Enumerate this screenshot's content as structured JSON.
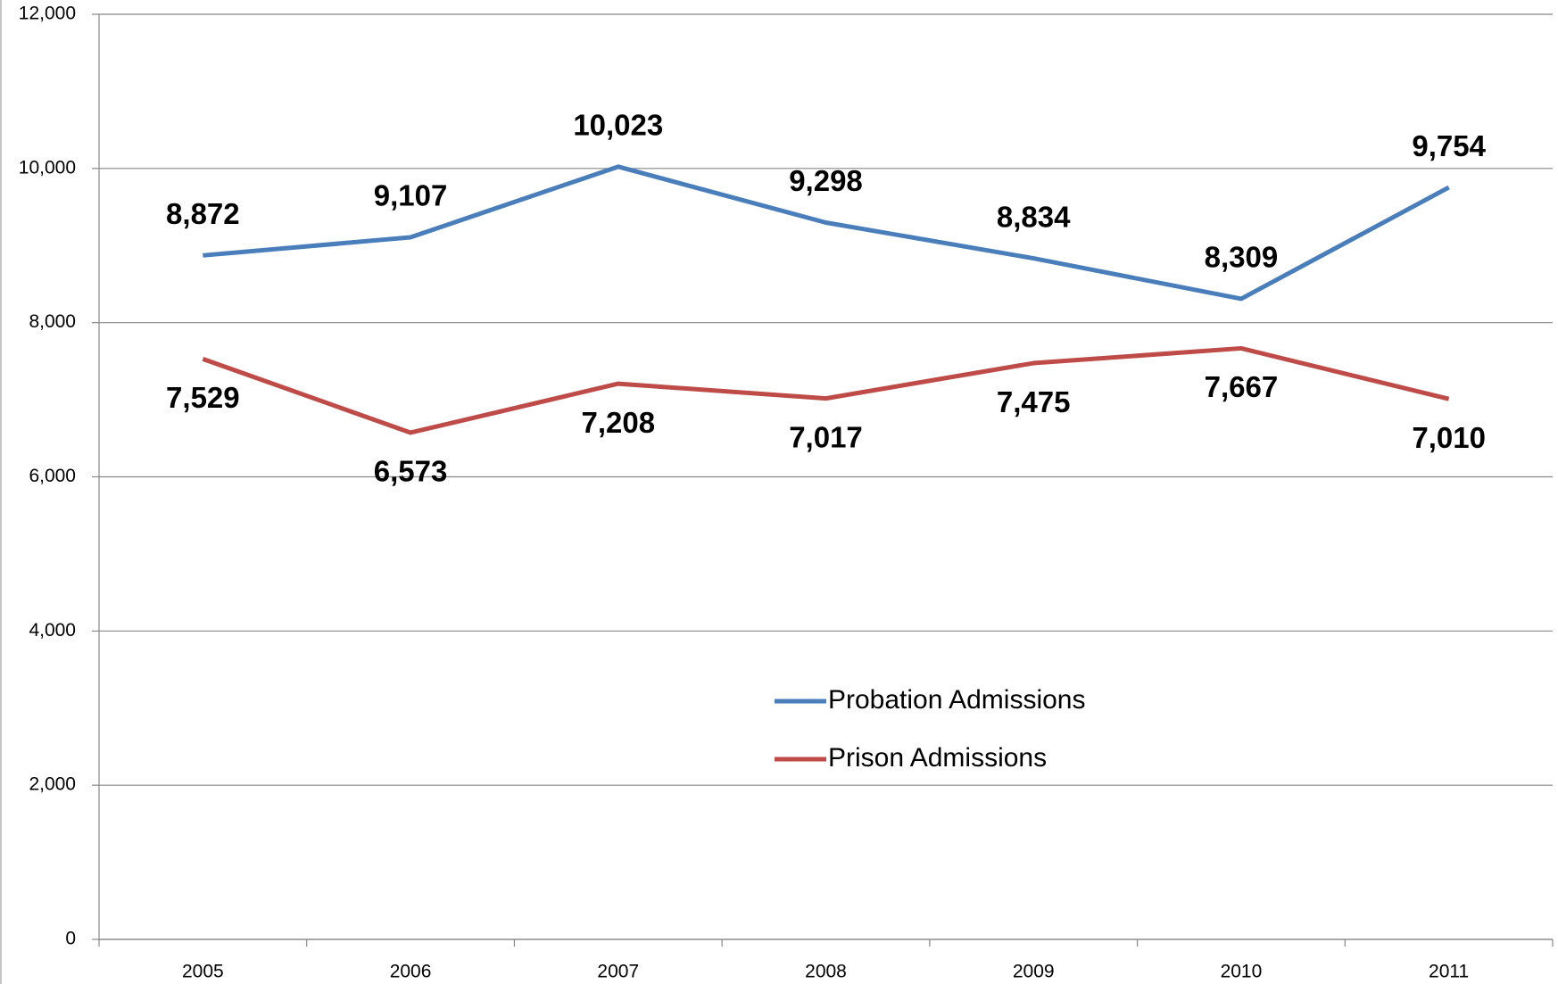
{
  "chart_data": {
    "type": "line",
    "categories": [
      "2005",
      "2006",
      "2007",
      "2008",
      "2009",
      "2010",
      "2011"
    ],
    "series": [
      {
        "name": "Probation Admissions",
        "color": "#4a7ebb",
        "values": [
          8872,
          9107,
          10023,
          9298,
          8834,
          8309,
          9754
        ],
        "value_labels": [
          "8,872",
          "9,107",
          "10,023",
          "9,298",
          "8,834",
          "8,309",
          "9,754"
        ]
      },
      {
        "name": "Prison Admissions",
        "color": "#be4b48",
        "values": [
          7529,
          6573,
          7208,
          7017,
          7475,
          7667,
          7010
        ],
        "value_labels": [
          "7,529",
          "6,573",
          "7,208",
          "7,017",
          "7,475",
          "7,667",
          "7,010"
        ]
      }
    ],
    "ylim": [
      0,
      12000
    ],
    "yticks": [
      0,
      {
        "value": 2000,
        "label": "2,000"
      },
      {
        "value": 4000,
        "label": "4,000"
      },
      {
        "value": 6000,
        "label": "6,000"
      },
      {
        "value": 8000,
        "label": "8,000"
      },
      {
        "value": 10000,
        "label": "10,000"
      },
      {
        "value": 12000,
        "label": "12,000"
      }
    ],
    "grid": true,
    "legend": "center"
  }
}
